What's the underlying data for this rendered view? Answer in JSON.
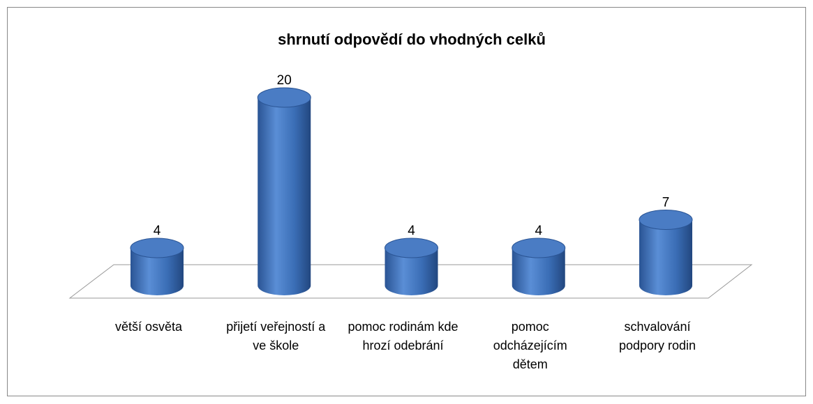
{
  "chart_data": {
    "type": "bar3d",
    "title": "shrnutí odpovědí do vhodných celků",
    "categories": [
      "větší osvěta",
      "přijetí veřejností a ve škole",
      "pomoc rodinám kde hrozí odebrání",
      "pomoc odcházejícím dětem",
      "schvalování podpory rodin"
    ],
    "values": [
      4,
      20,
      4,
      4,
      7
    ],
    "color": "#4a7cc4"
  }
}
